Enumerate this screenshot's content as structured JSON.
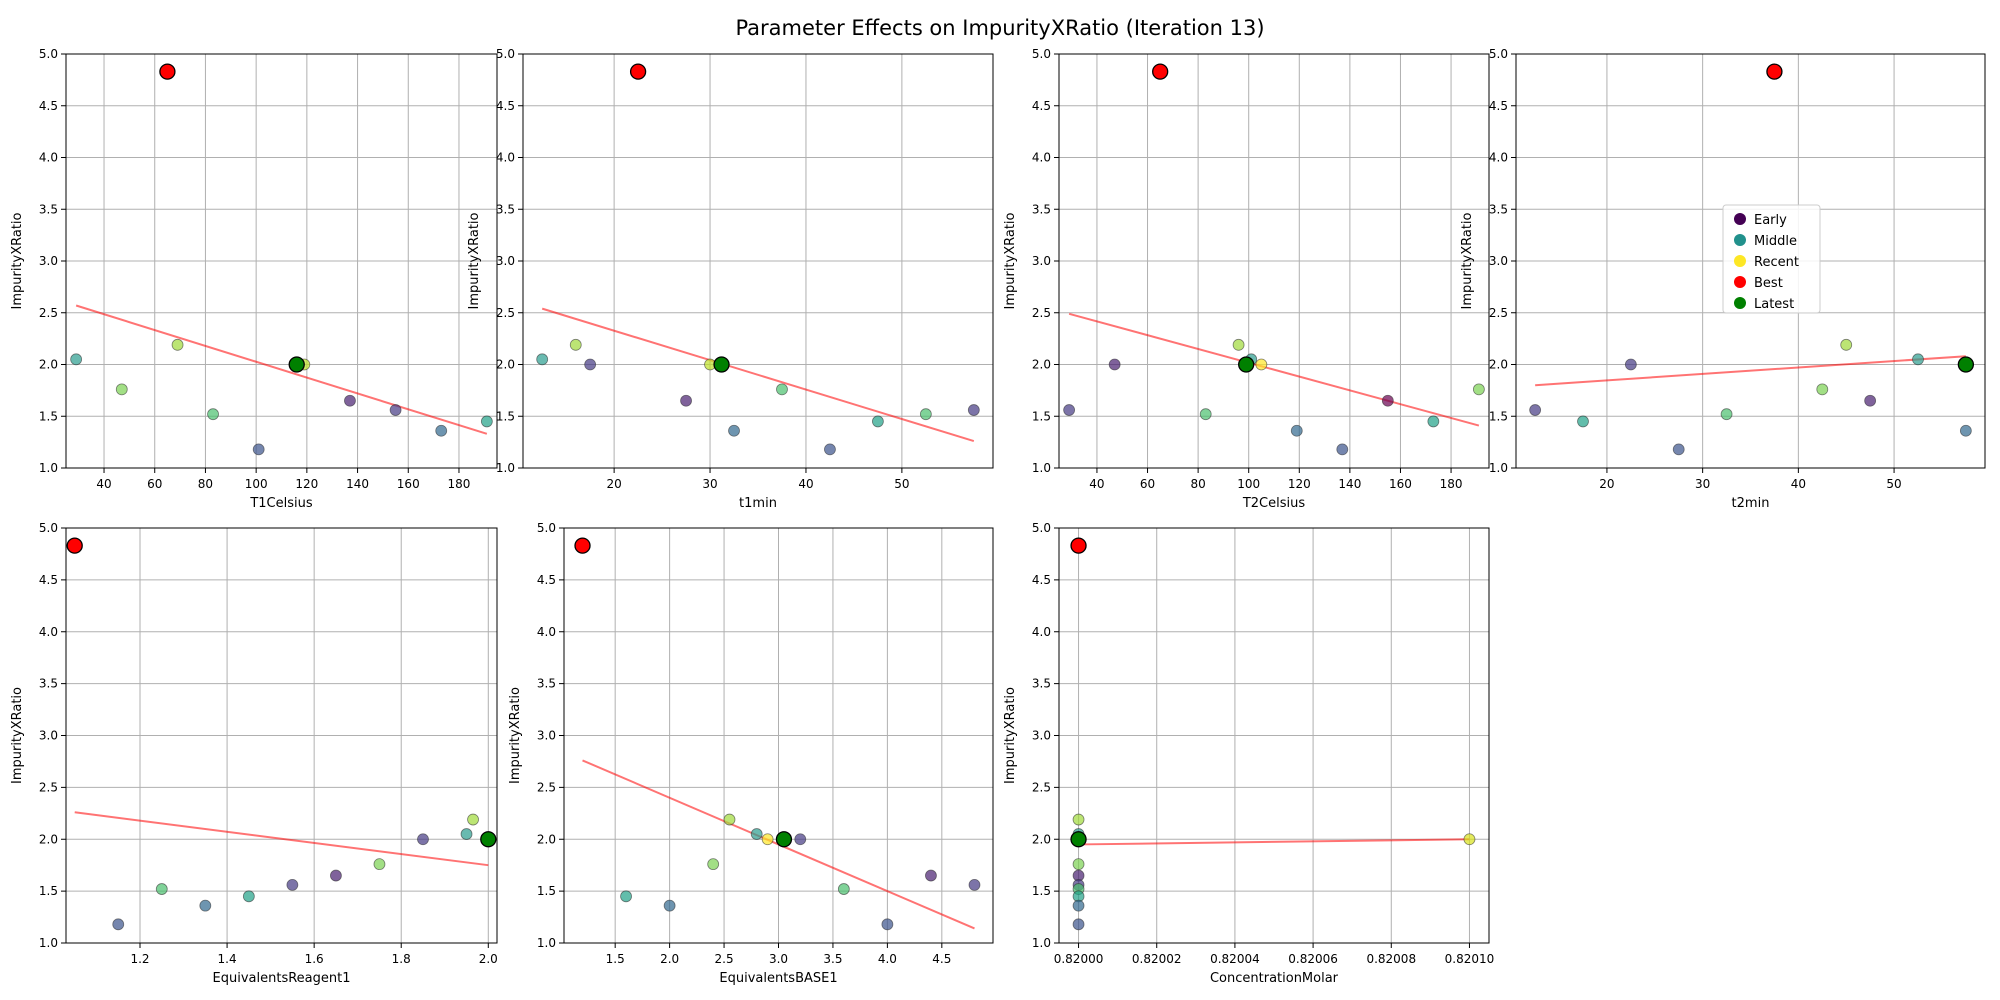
{
  "figure": {
    "title": "Parameter Effects on ImpurityXRatio (Iteration 13)"
  },
  "legend": {
    "placement": "center-left of t2min panel",
    "entries": [
      {
        "label": "Early",
        "color": "#440154"
      },
      {
        "label": "Middle",
        "color": "#21918c"
      },
      {
        "label": "Recent",
        "color": "#fde725"
      },
      {
        "label": "Best",
        "color": "#ff0000"
      },
      {
        "label": "Latest",
        "color": "#008000"
      }
    ]
  },
  "chart_data": [
    {
      "type": "scatter",
      "xlabel": "T1Celsius",
      "ylabel": "ImpurityXRatio",
      "xlim": [
        25,
        195
      ],
      "ylim": [
        1.0,
        5.0
      ],
      "xticks": [
        40,
        60,
        80,
        100,
        120,
        140,
        160,
        180
      ],
      "xtick_labels": [
        "40",
        "60",
        "80",
        "100",
        "120",
        "140",
        "160",
        "180"
      ],
      "yticks": [
        1.0,
        1.5,
        2.0,
        2.5,
        3.0,
        3.5,
        4.0,
        4.5,
        5.0
      ],
      "ytick_labels": [
        "1.0",
        "1.5",
        "2.0",
        "2.5",
        "3.0",
        "3.5",
        "4.0",
        "4.5",
        "5.0"
      ],
      "grid": true,
      "points": [
        {
          "x": 29,
          "y": 2.05,
          "color": "#2a9d8f"
        },
        {
          "x": 47,
          "y": 1.76,
          "color": "#7ad151"
        },
        {
          "x": 69,
          "y": 2.19,
          "color": "#a0da39"
        },
        {
          "x": 83,
          "y": 1.52,
          "color": "#4ac16d"
        },
        {
          "x": 101,
          "y": 1.18,
          "color": "#3b528b"
        },
        {
          "x": 119,
          "y": 2.0,
          "color": "#bddf26"
        },
        {
          "x": 137,
          "y": 1.65,
          "color": "#481f70"
        },
        {
          "x": 155,
          "y": 1.56,
          "color": "#443983"
        },
        {
          "x": 173,
          "y": 1.36,
          "color": "#31688e"
        },
        {
          "x": 191,
          "y": 1.45,
          "color": "#1fa187"
        }
      ],
      "trend": {
        "x": [
          29,
          191
        ],
        "y": [
          2.57,
          1.33
        ]
      },
      "best": {
        "x": 65,
        "y": 4.83
      },
      "latest": {
        "x": 116,
        "y": 2.0
      }
    },
    {
      "type": "scatter",
      "xlabel": "t1min",
      "ylabel": "ImpurityXRatio",
      "xlim": [
        10.5,
        59.5
      ],
      "ylim": [
        1.0,
        5.0
      ],
      "xticks": [
        20,
        30,
        40,
        50
      ],
      "xtick_labels": [
        "20",
        "30",
        "40",
        "50"
      ],
      "yticks": [
        1.0,
        1.5,
        2.0,
        2.5,
        3.0,
        3.5,
        4.0,
        4.5,
        5.0
      ],
      "ytick_labels": [
        "1.0",
        "1.5",
        "2.0",
        "2.5",
        "3.0",
        "3.5",
        "4.0",
        "4.5",
        "5.0"
      ],
      "grid": true,
      "points": [
        {
          "x": 12.5,
          "y": 2.05,
          "color": "#2a9d8f"
        },
        {
          "x": 16,
          "y": 2.19,
          "color": "#a0da39"
        },
        {
          "x": 17.5,
          "y": 2.0,
          "color": "#443983"
        },
        {
          "x": 27.5,
          "y": 1.65,
          "color": "#481f70"
        },
        {
          "x": 30,
          "y": 2.0,
          "color": "#bddf26"
        },
        {
          "x": 32.5,
          "y": 1.36,
          "color": "#31688e"
        },
        {
          "x": 37.5,
          "y": 1.76,
          "color": "#4ac16d"
        },
        {
          "x": 42.5,
          "y": 1.18,
          "color": "#3b528b"
        },
        {
          "x": 47.5,
          "y": 1.45,
          "color": "#1fa187"
        },
        {
          "x": 52.5,
          "y": 1.52,
          "color": "#4ac16d"
        },
        {
          "x": 57.5,
          "y": 1.56,
          "color": "#443983"
        }
      ],
      "trend": {
        "x": [
          12.5,
          57.5
        ],
        "y": [
          2.54,
          1.26
        ]
      },
      "best": {
        "x": 22.5,
        "y": 4.83
      },
      "latest": {
        "x": 31.2,
        "y": 2.0
      }
    },
    {
      "type": "scatter",
      "xlabel": "T2Celsius",
      "ylabel": "ImpurityXRatio",
      "xlim": [
        25,
        195
      ],
      "ylim": [
        1.0,
        5.0
      ],
      "xticks": [
        40,
        60,
        80,
        100,
        120,
        140,
        160,
        180
      ],
      "xtick_labels": [
        "40",
        "60",
        "80",
        "100",
        "120",
        "140",
        "160",
        "180"
      ],
      "yticks": [
        1.0,
        1.5,
        2.0,
        2.5,
        3.0,
        3.5,
        4.0,
        4.5,
        5.0
      ],
      "ytick_labels": [
        "1.0",
        "1.5",
        "2.0",
        "2.5",
        "3.0",
        "3.5",
        "4.0",
        "4.5",
        "5.0"
      ],
      "grid": true,
      "points": [
        {
          "x": 29,
          "y": 1.56,
          "color": "#443983"
        },
        {
          "x": 47,
          "y": 2.0,
          "color": "#481f70"
        },
        {
          "x": 83,
          "y": 1.52,
          "color": "#4ac16d"
        },
        {
          "x": 96,
          "y": 2.19,
          "color": "#a0da39"
        },
        {
          "x": 101,
          "y": 2.05,
          "color": "#2a9d8f"
        },
        {
          "x": 105,
          "y": 2.0,
          "color": "#fde725"
        },
        {
          "x": 119,
          "y": 1.36,
          "color": "#31688e"
        },
        {
          "x": 137,
          "y": 1.18,
          "color": "#3b528b"
        },
        {
          "x": 155,
          "y": 1.65,
          "color": "#6a0050"
        },
        {
          "x": 173,
          "y": 1.45,
          "color": "#1fa187"
        },
        {
          "x": 191,
          "y": 1.76,
          "color": "#7ad151"
        }
      ],
      "trend": {
        "x": [
          29,
          191
        ],
        "y": [
          2.49,
          1.41
        ]
      },
      "best": {
        "x": 65,
        "y": 4.83
      },
      "latest": {
        "x": 99,
        "y": 2.0
      }
    },
    {
      "type": "scatter",
      "xlabel": "t2min",
      "ylabel": "ImpurityXRatio",
      "xlim": [
        10.5,
        59.5
      ],
      "ylim": [
        1.0,
        5.0
      ],
      "xticks": [
        20,
        30,
        40,
        50
      ],
      "xtick_labels": [
        "20",
        "30",
        "40",
        "50"
      ],
      "yticks": [
        1.0,
        1.5,
        2.0,
        2.5,
        3.0,
        3.5,
        4.0,
        4.5,
        5.0
      ],
      "ytick_labels": [
        "1.0",
        "1.5",
        "2.0",
        "2.5",
        "3.0",
        "3.5",
        "4.0",
        "4.5",
        "5.0"
      ],
      "grid": true,
      "points": [
        {
          "x": 12.5,
          "y": 1.56,
          "color": "#443983"
        },
        {
          "x": 17.5,
          "y": 1.45,
          "color": "#1fa187"
        },
        {
          "x": 22.5,
          "y": 2.0,
          "color": "#443983"
        },
        {
          "x": 27.5,
          "y": 1.18,
          "color": "#3b528b"
        },
        {
          "x": 32.5,
          "y": 1.52,
          "color": "#4ac16d"
        },
        {
          "x": 42.5,
          "y": 1.76,
          "color": "#7ad151"
        },
        {
          "x": 45,
          "y": 2.19,
          "color": "#a0da39"
        },
        {
          "x": 47.5,
          "y": 1.65,
          "color": "#481f70"
        },
        {
          "x": 52.5,
          "y": 2.05,
          "color": "#2a9d8f"
        },
        {
          "x": 57.5,
          "y": 1.36,
          "color": "#31688e"
        }
      ],
      "trend": {
        "x": [
          12.5,
          57.5
        ],
        "y": [
          1.8,
          2.08
        ]
      },
      "best": {
        "x": 37.5,
        "y": 4.83
      },
      "latest": {
        "x": 57.5,
        "y": 2.0
      }
    },
    {
      "type": "scatter",
      "xlabel": "EquivalentsReagent1",
      "ylabel": "ImpurityXRatio",
      "xlim": [
        1.03,
        2.02
      ],
      "ylim": [
        1.0,
        5.0
      ],
      "xticks": [
        1.2,
        1.4,
        1.6,
        1.8,
        2.0
      ],
      "xtick_labels": [
        "1.2",
        "1.4",
        "1.6",
        "1.8",
        "2.0"
      ],
      "yticks": [
        1.0,
        1.5,
        2.0,
        2.5,
        3.0,
        3.5,
        4.0,
        4.5,
        5.0
      ],
      "ytick_labels": [
        "1.0",
        "1.5",
        "2.0",
        "2.5",
        "3.0",
        "3.5",
        "4.0",
        "4.5",
        "5.0"
      ],
      "grid": true,
      "points": [
        {
          "x": 1.15,
          "y": 1.18,
          "color": "#3b528b"
        },
        {
          "x": 1.25,
          "y": 1.52,
          "color": "#4ac16d"
        },
        {
          "x": 1.35,
          "y": 1.36,
          "color": "#31688e"
        },
        {
          "x": 1.45,
          "y": 1.45,
          "color": "#1fa187"
        },
        {
          "x": 1.55,
          "y": 1.56,
          "color": "#443983"
        },
        {
          "x": 1.65,
          "y": 1.65,
          "color": "#481f70"
        },
        {
          "x": 1.75,
          "y": 1.76,
          "color": "#7ad151"
        },
        {
          "x": 1.85,
          "y": 2.0,
          "color": "#443983"
        },
        {
          "x": 1.95,
          "y": 2.05,
          "color": "#2a9d8f"
        },
        {
          "x": 1.965,
          "y": 2.19,
          "color": "#a0da39"
        }
      ],
      "trend": {
        "x": [
          1.05,
          2.0
        ],
        "y": [
          2.26,
          1.75
        ]
      },
      "best": {
        "x": 1.05,
        "y": 4.83
      },
      "latest": {
        "x": 2.0,
        "y": 2.0
      }
    },
    {
      "type": "scatter",
      "xlabel": "EquivalentsBASE1",
      "ylabel": "ImpurityXRatio",
      "xlim": [
        1.03,
        4.97
      ],
      "ylim": [
        1.0,
        5.0
      ],
      "xticks": [
        1.5,
        2.0,
        2.5,
        3.0,
        3.5,
        4.0,
        4.5
      ],
      "xtick_labels": [
        "1.5",
        "2.0",
        "2.5",
        "3.0",
        "3.5",
        "4.0",
        "4.5"
      ],
      "yticks": [
        1.0,
        1.5,
        2.0,
        2.5,
        3.0,
        3.5,
        4.0,
        4.5,
        5.0
      ],
      "ytick_labels": [
        "1.0",
        "1.5",
        "2.0",
        "2.5",
        "3.0",
        "3.5",
        "4.0",
        "4.5",
        "5.0"
      ],
      "grid": true,
      "points": [
        {
          "x": 1.6,
          "y": 1.45,
          "color": "#1fa187"
        },
        {
          "x": 2.0,
          "y": 1.36,
          "color": "#31688e"
        },
        {
          "x": 2.4,
          "y": 1.76,
          "color": "#7ad151"
        },
        {
          "x": 2.55,
          "y": 2.19,
          "color": "#a0da39"
        },
        {
          "x": 2.8,
          "y": 2.05,
          "color": "#2a9d8f"
        },
        {
          "x": 2.9,
          "y": 2.0,
          "color": "#fde725"
        },
        {
          "x": 3.2,
          "y": 2.0,
          "color": "#443983"
        },
        {
          "x": 3.6,
          "y": 1.52,
          "color": "#4ac16d"
        },
        {
          "x": 4.0,
          "y": 1.18,
          "color": "#3b528b"
        },
        {
          "x": 4.4,
          "y": 1.65,
          "color": "#481f70"
        },
        {
          "x": 4.8,
          "y": 1.56,
          "color": "#443983"
        }
      ],
      "trend": {
        "x": [
          1.2,
          4.8
        ],
        "y": [
          2.76,
          1.14
        ]
      },
      "best": {
        "x": 1.2,
        "y": 4.83
      },
      "latest": {
        "x": 3.05,
        "y": 2.0
      }
    },
    {
      "type": "scatter",
      "xlabel": "ConcentrationMolar",
      "ylabel": "ImpurityXRatio",
      "xlim": [
        0.819995,
        0.820105
      ],
      "ylim": [
        1.0,
        5.0
      ],
      "xticks": [
        0.82,
        0.82002,
        0.82004,
        0.82006,
        0.82008,
        0.8201
      ],
      "xtick_labels": [
        "0.82000",
        "0.82002",
        "0.82004",
        "0.82006",
        "0.82008",
        "0.82010"
      ],
      "yticks": [
        1.0,
        1.5,
        2.0,
        2.5,
        3.0,
        3.5,
        4.0,
        4.5,
        5.0
      ],
      "ytick_labels": [
        "1.0",
        "1.5",
        "2.0",
        "2.5",
        "3.0",
        "3.5",
        "4.0",
        "4.5",
        "5.0"
      ],
      "grid": true,
      "points": [
        {
          "x": 0.82,
          "y": 2.19,
          "color": "#a0da39"
        },
        {
          "x": 0.82,
          "y": 2.05,
          "color": "#2a9d8f"
        },
        {
          "x": 0.82,
          "y": 2.0,
          "color": "#443983"
        },
        {
          "x": 0.82,
          "y": 1.76,
          "color": "#7ad151"
        },
        {
          "x": 0.82,
          "y": 1.65,
          "color": "#481f70"
        },
        {
          "x": 0.82,
          "y": 1.56,
          "color": "#443983"
        },
        {
          "x": 0.82,
          "y": 1.52,
          "color": "#4ac16d"
        },
        {
          "x": 0.82,
          "y": 1.45,
          "color": "#1fa187"
        },
        {
          "x": 0.82,
          "y": 1.36,
          "color": "#31688e"
        },
        {
          "x": 0.82,
          "y": 1.18,
          "color": "#3b528b"
        },
        {
          "x": 0.8201,
          "y": 2.0,
          "color": "#d8e219"
        }
      ],
      "trend": {
        "x": [
          0.82,
          0.8201
        ],
        "y": [
          1.95,
          2.0
        ]
      },
      "best": {
        "x": 0.82,
        "y": 4.83
      },
      "latest": {
        "x": 0.82,
        "y": 2.0
      }
    }
  ]
}
